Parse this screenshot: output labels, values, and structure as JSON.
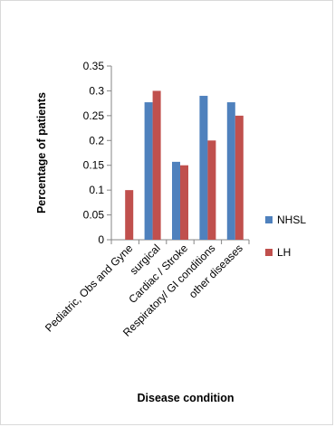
{
  "chart_data": {
    "type": "bar",
    "title": "",
    "xlabel": "Disease condition",
    "ylabel": "Percentage of patients",
    "categories": [
      "Pediatric, Obs and Gyne",
      "surgical",
      "Cardiac / Stroke",
      "Respiratory/ GI conditions",
      "other diseases"
    ],
    "series": [
      {
        "name": "NHSL",
        "color": "#4F81BD",
        "values": [
          0,
          0.277,
          0.157,
          0.29,
          0.277
        ]
      },
      {
        "name": "LH",
        "color": "#C0504D",
        "values": [
          0.1,
          0.3,
          0.15,
          0.2,
          0.25
        ]
      }
    ],
    "ylim": [
      0,
      0.35
    ],
    "yticks": [
      "0",
      "0.05",
      "0.1",
      "0.15",
      "0.2",
      "0.25",
      "0.3",
      "0.35"
    ],
    "grid": false,
    "legend_position": "right"
  }
}
